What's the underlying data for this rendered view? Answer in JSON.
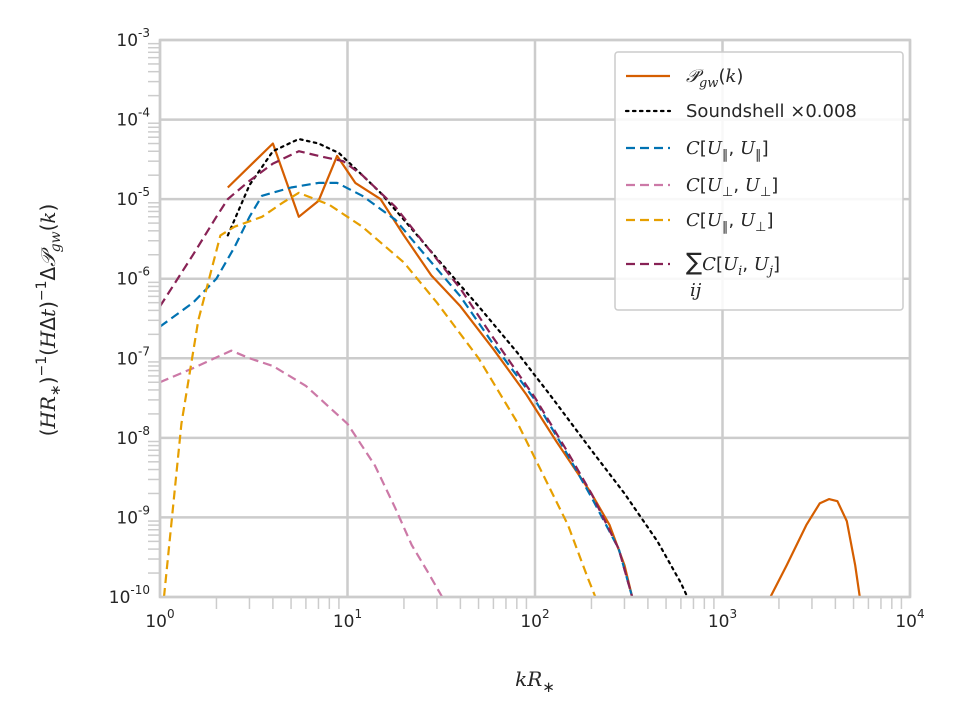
{
  "chart_data": {
    "type": "line",
    "xscale": "log",
    "yscale": "log",
    "xlim": [
      1,
      10000
    ],
    "ylim": [
      1e-10,
      0.001
    ],
    "grid": true,
    "legend_position": "top-right",
    "xlabel": "kR*",
    "ylabel": "(HR*)^-1 (HΔt)^-1 ΔP_gw(k)",
    "x_ticks": [
      {
        "base": "10",
        "exp": "0"
      },
      {
        "base": "10",
        "exp": "1"
      },
      {
        "base": "10",
        "exp": "2"
      },
      {
        "base": "10",
        "exp": "3"
      },
      {
        "base": "10",
        "exp": "4"
      }
    ],
    "y_ticks": [
      {
        "base": "10",
        "exp": "-10"
      },
      {
        "base": "10",
        "exp": "-9"
      },
      {
        "base": "10",
        "exp": "-8"
      },
      {
        "base": "10",
        "exp": "-7"
      },
      {
        "base": "10",
        "exp": "-6"
      },
      {
        "base": "10",
        "exp": "-5"
      },
      {
        "base": "10",
        "exp": "-4"
      },
      {
        "base": "10",
        "exp": "-3"
      }
    ],
    "series": [
      {
        "name": "Pdot_gw(k)",
        "color": "#d55e00",
        "style": "solid",
        "segments": [
          [
            [
              2.3,
              1.4e-05
            ],
            [
              4.0,
              5e-05
            ],
            [
              5.5,
              6e-06
            ],
            [
              7.0,
              9.5e-06
            ],
            [
              8.8,
              3.5e-05
            ],
            [
              11,
              1.6e-05
            ],
            [
              15,
              1e-05
            ],
            [
              20,
              3.5e-06
            ],
            [
              28,
              1.1e-06
            ],
            [
              40,
              4.5e-07
            ],
            [
              60,
              1.3e-07
            ],
            [
              90,
              3.5e-08
            ],
            [
              130,
              9e-09
            ],
            [
              200,
              2e-09
            ],
            [
              250,
              8e-10
            ],
            [
              300,
              2.5e-10
            ],
            [
              330,
              1e-10
            ]
          ],
          [
            [
              1800,
              1e-10
            ],
            [
              2200,
              2.5e-10
            ],
            [
              2800,
              8e-10
            ],
            [
              3300,
              1.5e-09
            ],
            [
              3700,
              1.7e-09
            ],
            [
              4100,
              1.6e-09
            ],
            [
              4600,
              9e-10
            ],
            [
              5100,
              2.5e-10
            ],
            [
              5400,
              1e-10
            ]
          ]
        ]
      },
      {
        "name": "Soundshell ×0.008",
        "color": "#000000",
        "style": "dotted",
        "segments": [
          [
            [
              2.3,
              3.5e-06
            ],
            [
              3.0,
              1.5e-05
            ],
            [
              4.0,
              4e-05
            ],
            [
              5.5,
              5.7e-05
            ],
            [
              7.0,
              5e-05
            ],
            [
              9.0,
              3.8e-05
            ],
            [
              12,
              2e-05
            ],
            [
              15,
              1.2e-05
            ],
            [
              20,
              5.5e-06
            ],
            [
              30,
              1.8e-06
            ],
            [
              50,
              4.5e-07
            ],
            [
              80,
              1.2e-07
            ],
            [
              120,
              3.5e-08
            ],
            [
              200,
              7e-09
            ],
            [
              300,
              2e-09
            ],
            [
              450,
              5e-10
            ],
            [
              600,
              1.5e-10
            ],
            [
              650,
              1e-10
            ]
          ]
        ]
      },
      {
        "name": "C[U∥,U∥]",
        "color": "#0072b2",
        "style": "dashed",
        "segments": [
          [
            [
              1.0,
              2.5e-07
            ],
            [
              1.5,
              5e-07
            ],
            [
              2.0,
              1e-06
            ],
            [
              2.5,
              2.5e-06
            ],
            [
              3.0,
              6e-06
            ],
            [
              3.5,
              1.1e-05
            ],
            [
              5.0,
              1.4e-05
            ],
            [
              7.0,
              1.6e-05
            ],
            [
              8.8,
              1.6e-05
            ],
            [
              12,
              1.1e-05
            ],
            [
              18,
              5.5e-06
            ],
            [
              25,
              2.2e-06
            ],
            [
              40,
              6e-07
            ],
            [
              60,
              1.5e-07
            ],
            [
              100,
              3e-08
            ],
            [
              150,
              6e-09
            ],
            [
              200,
              1.8e-09
            ],
            [
              280,
              4e-10
            ],
            [
              330,
              1e-10
            ]
          ]
        ]
      },
      {
        "name": "C[U⊥,U⊥]",
        "color": "#cc79a7",
        "style": "dashed",
        "segments": [
          [
            [
              1.0,
              5e-08
            ],
            [
              1.5,
              7.5e-08
            ],
            [
              2.4,
              1.25e-07
            ],
            [
              3.0,
              1e-07
            ],
            [
              4.0,
              8e-08
            ],
            [
              6.0,
              4.5e-08
            ],
            [
              10,
              1.5e-08
            ],
            [
              14,
              4.5e-09
            ],
            [
              18,
              1.3e-09
            ],
            [
              22,
              4.5e-10
            ],
            [
              27,
              2e-10
            ],
            [
              32,
              1e-10
            ]
          ]
        ]
      },
      {
        "name": "C[U∥,U⊥]",
        "color": "#e69f00",
        "style": "dashed",
        "segments": [
          [
            [
              1.05,
              1e-10
            ],
            [
              1.3,
              1.5e-08
            ],
            [
              1.6,
              3e-07
            ],
            [
              2.1,
              3.5e-06
            ],
            [
              2.5,
              4.5e-06
            ],
            [
              3.5,
              6e-06
            ],
            [
              4.5,
              9e-06
            ],
            [
              5.5,
              1.2e-05
            ],
            [
              8.0,
              8.5e-06
            ],
            [
              12,
              4.5e-06
            ],
            [
              20,
              1.6e-06
            ],
            [
              30,
              5e-07
            ],
            [
              50,
              1e-07
            ],
            [
              80,
              1.6e-08
            ],
            [
              110,
              3.5e-09
            ],
            [
              150,
              8e-10
            ],
            [
              190,
              1.8e-10
            ],
            [
              210,
              1e-10
            ]
          ]
        ]
      },
      {
        "name": "∑ij C[Ui,Uj]",
        "color": "#882255",
        "style": "dashed",
        "segments": [
          [
            [
              1.0,
              4.5e-07
            ],
            [
              1.5,
              2e-06
            ],
            [
              2.0,
              6e-06
            ],
            [
              2.3,
              1e-05
            ],
            [
              3.0,
              1.7e-05
            ],
            [
              4.0,
              2.8e-05
            ],
            [
              5.5,
              4e-05
            ],
            [
              7.0,
              3.5e-05
            ],
            [
              9.5,
              3e-05
            ],
            [
              12,
              2e-05
            ],
            [
              18,
              8e-06
            ],
            [
              25,
              3e-06
            ],
            [
              40,
              7.5e-07
            ],
            [
              60,
              1.8e-07
            ],
            [
              100,
              3.2e-08
            ],
            [
              150,
              6.5e-09
            ],
            [
              200,
              2e-09
            ],
            [
              280,
              4e-10
            ],
            [
              330,
              1e-10
            ]
          ]
        ]
      }
    ]
  }
}
